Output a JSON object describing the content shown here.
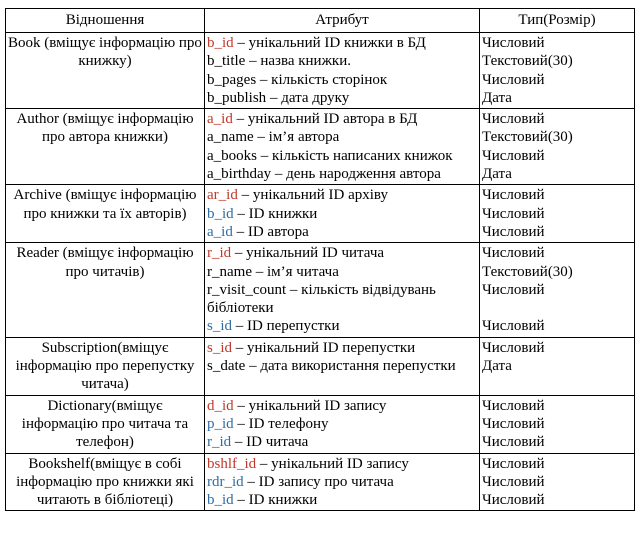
{
  "headers": {
    "relation": "Відношення",
    "attribute": "Атрибут",
    "type": "Тип(Розмір)"
  },
  "colors": {
    "pk": "#c0392b",
    "fk": "#2e6da4",
    "text": "#000000"
  },
  "rows": [
    {
      "relation": "Book (вміщує інформацію про книжку)",
      "attrs": [
        {
          "key": "b_id",
          "rest": " – унікальний ID книжки в БД",
          "kind": "pk",
          "type": "Числовий"
        },
        {
          "key": "b_title",
          "rest": " – назва книжки.",
          "kind": "plain",
          "type": "Текстовий(30)"
        },
        {
          "key": "b_pages",
          "rest": " – кількість сторінок",
          "kind": "plain",
          "type": "Числовий"
        },
        {
          "key": "b_publish",
          "rest": " – дата друку",
          "kind": "plain",
          "type": "Дата"
        }
      ]
    },
    {
      "relation": "Author (вміщує інформацію про автора книжки)",
      "attrs": [
        {
          "key": "a_id",
          "rest": " – унікальний ID автора в БД",
          "kind": "pk",
          "type": "Числовий"
        },
        {
          "key": "a_name",
          "rest": " – ім’я автора",
          "kind": "plain",
          "type": "Текстовий(30)"
        },
        {
          "key": "a_books",
          "rest": " – кількість написаних книжок",
          "kind": "plain",
          "type": "Числовий"
        },
        {
          "key": "a_birthday",
          "rest": " – день народження автора",
          "kind": "plain",
          "type": "Дата"
        }
      ]
    },
    {
      "relation": "Archive (вміщує інформацію про книжки та їх авторів)",
      "attrs": [
        {
          "key": "ar_id",
          "rest": " – унікальний ID архіву",
          "kind": "pk",
          "type": "Числовий"
        },
        {
          "key": "b_id",
          "rest": " – ID книжки",
          "kind": "fk",
          "type": "Числовий"
        },
        {
          "key": "a_id",
          "rest": " – ID автора",
          "kind": "fk",
          "type": "Числовий"
        }
      ]
    },
    {
      "relation": "Reader (вміщує інформацію про читачів)",
      "attrs": [
        {
          "key": "r_id",
          "rest": " – унікальний ID читача",
          "kind": "pk",
          "type": "Числовий"
        },
        {
          "key": "r_name",
          "rest": " – ім’я читача",
          "kind": "plain",
          "type": "Текстовий(30)"
        },
        {
          "key": "r_visit_count",
          "rest": " – кількість відвідувань бібліотеки",
          "kind": "plain",
          "type": "Числовий",
          "wraps": true
        },
        {
          "key": "s_id",
          "rest": " – ID перепустки",
          "kind": "fk",
          "type": "Числовий"
        }
      ]
    },
    {
      "relation": "Subscription(вміщує інформацію про перепустку читача)",
      "attrs": [
        {
          "key": "s_id",
          "rest": " – унікальний ID перепустки",
          "kind": "pk",
          "type": "Числовий"
        },
        {
          "key": "s_date",
          "rest": " – дата використання перепустки",
          "kind": "plain",
          "type": "Дата"
        }
      ]
    },
    {
      "relation": "Dictionary(вміщує інформацію про читача та телефон)",
      "attrs": [
        {
          "key": "d_id",
          "rest": " – унікальний ID запису",
          "kind": "pk",
          "type": "Числовий"
        },
        {
          "key": "p_id",
          "rest": " – ID телефону",
          "kind": "fk",
          "type": "Числовий"
        },
        {
          "key": "r_id",
          "rest": " – ID читача",
          "kind": "fk",
          "type": "Числовий"
        }
      ]
    },
    {
      "relation": "Bookshelf(вміщує в собі інформацію про книжки які читають в бібліотеці)",
      "attrs": [
        {
          "key": "bshlf_id",
          "rest": " – унікальний ID запису",
          "kind": "pk",
          "type": "Числовий"
        },
        {
          "key": "rdr_id",
          "rest": " – ID запису про читача",
          "kind": "fk",
          "type": "Числовий"
        },
        {
          "key": "b_id",
          "rest": " – ID книжки",
          "kind": "fk",
          "type": "Числовий"
        }
      ]
    }
  ]
}
